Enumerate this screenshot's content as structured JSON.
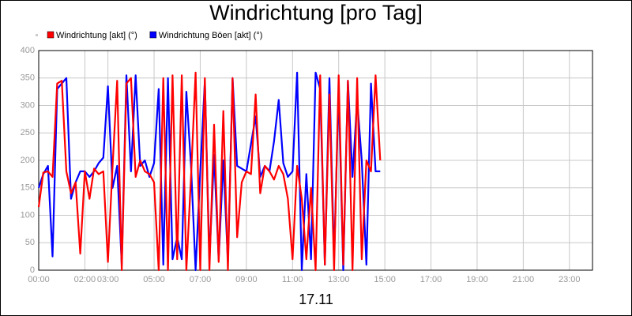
{
  "chart_data": {
    "type": "line",
    "title": "Windrichtung [pro Tag]",
    "x_label": "17.11",
    "x": [
      0,
      0.2,
      0.4,
      0.6,
      0.8,
      1.0,
      1.2,
      1.4,
      1.6,
      1.8,
      2.0,
      2.2,
      2.4,
      2.6,
      2.8,
      3.0,
      3.2,
      3.4,
      3.6,
      3.8,
      4.0,
      4.2,
      4.4,
      4.6,
      4.8,
      5.0,
      5.2,
      5.4,
      5.6,
      5.8,
      6.0,
      6.2,
      6.4,
      6.6,
      6.8,
      7.0,
      7.2,
      7.4,
      7.6,
      7.8,
      8.0,
      8.2,
      8.4,
      8.6,
      8.8,
      9.0,
      9.2,
      9.4,
      9.6,
      9.8,
      10.0,
      10.2,
      10.4,
      10.6,
      10.8,
      11.0,
      11.2,
      11.4,
      11.6,
      11.8,
      12.0,
      12.2,
      12.4,
      12.6,
      12.8,
      13.0,
      13.2,
      13.4,
      13.6,
      13.8,
      14.0,
      14.2,
      14.4,
      14.6,
      14.8
    ],
    "series": [
      {
        "name": "Windrichtung [akt] (°)",
        "color": "#ff0000",
        "values": [
          115,
          178,
          180,
          170,
          340,
          345,
          180,
          140,
          160,
          30,
          180,
          130,
          185,
          175,
          180,
          15,
          190,
          345,
          0,
          340,
          350,
          170,
          200,
          180,
          175,
          160,
          0,
          350,
          0,
          355,
          20,
          355,
          0,
          170,
          360,
          0,
          350,
          0,
          265,
          15,
          290,
          0,
          350,
          60,
          160,
          180,
          175,
          320,
          140,
          190,
          180,
          165,
          190,
          175,
          130,
          20,
          190,
          130,
          20,
          150,
          0,
          355,
          10,
          320,
          0,
          355,
          10,
          345,
          0,
          350,
          20,
          200,
          180,
          355,
          200
        ]
      },
      {
        "name": "Windrichtung Böen [akt] (°)",
        "color": "#0000ff",
        "values": [
          150,
          175,
          190,
          25,
          330,
          340,
          350,
          130,
          160,
          180,
          180,
          170,
          180,
          195,
          205,
          335,
          150,
          190,
          10,
          355,
          180,
          355,
          190,
          200,
          170,
          195,
          330,
          10,
          350,
          20,
          60,
          20,
          325,
          190,
          0,
          180,
          345,
          20,
          210,
          20,
          200,
          15,
          350,
          190,
          185,
          180,
          230,
          280,
          170,
          190,
          180,
          235,
          310,
          195,
          170,
          180,
          360,
          0,
          175,
          20,
          360,
          330,
          10,
          350,
          20,
          330,
          0,
          345,
          170,
          310,
          200,
          10,
          340,
          180,
          180
        ]
      }
    ],
    "xlim": [
      0,
      24
    ],
    "xticks": [
      {
        "value": 0,
        "label": "00:00"
      },
      {
        "value": 2,
        "label": "02:00"
      },
      {
        "value": 3,
        "label": "03:00"
      },
      {
        "value": 5,
        "label": "05:00"
      },
      {
        "value": 7,
        "label": "07:00"
      },
      {
        "value": 9,
        "label": "09:00"
      },
      {
        "value": 11,
        "label": "11:00"
      },
      {
        "value": 13,
        "label": "13:00"
      },
      {
        "value": 15,
        "label": "15:00"
      },
      {
        "value": 17,
        "label": "17:00"
      },
      {
        "value": 19,
        "label": "19:00"
      },
      {
        "value": 21,
        "label": "21:00"
      },
      {
        "value": 23,
        "label": "23:00"
      }
    ],
    "ylim": [
      0,
      400
    ],
    "yticks": [
      0,
      50,
      100,
      150,
      200,
      250,
      300,
      350,
      400
    ],
    "grid": true
  }
}
